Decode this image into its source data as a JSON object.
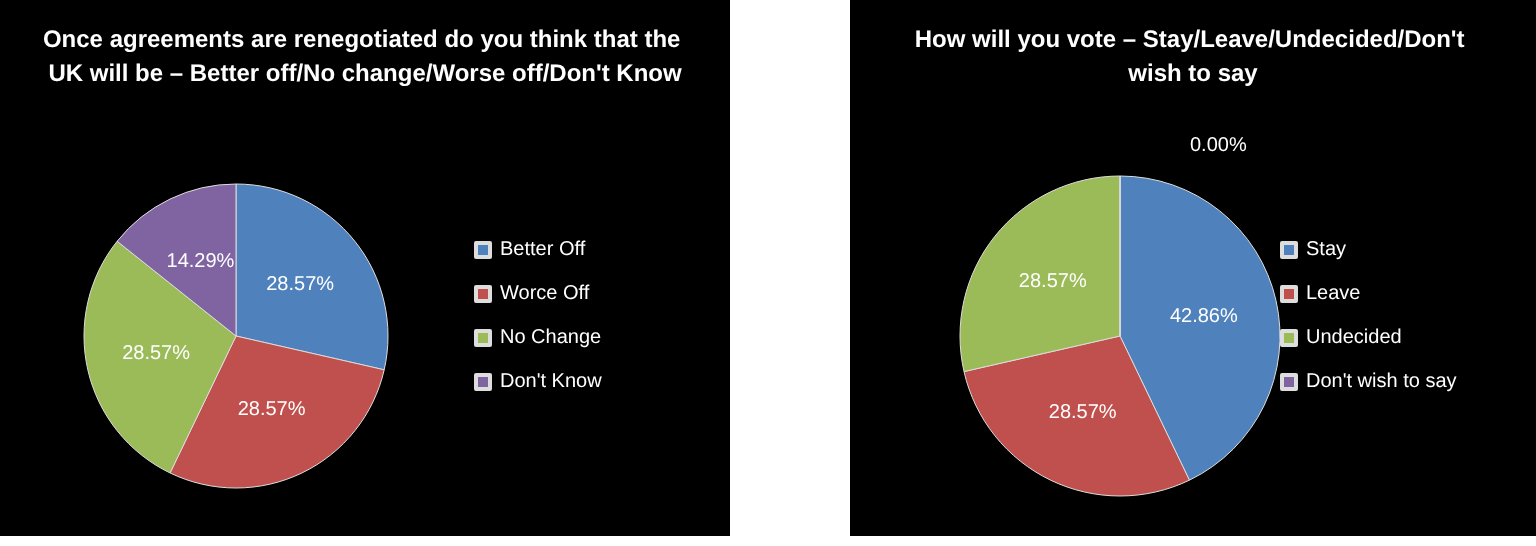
{
  "chart_data": [
    {
      "type": "pie",
      "title": "Once agreements are renegotiated do you think that the UK will be – Better off/No change/Worse off/Don't Know",
      "categories": [
        "Better Off",
        "Worce Off",
        "No Change",
        "Don't Know"
      ],
      "values": [
        28.57,
        28.57,
        28.57,
        14.29
      ],
      "colors": [
        "#4f81bd",
        "#c0504d",
        "#9bbb59",
        "#8064a2"
      ],
      "value_labels": [
        "28.57%",
        "28.57%",
        "28.57%",
        "14.29%"
      ],
      "legend": "right"
    },
    {
      "type": "pie",
      "title": "How will you vote – Stay/Leave/Undecided/Don't wish to say",
      "categories": [
        "Stay",
        "Leave",
        "Undecided",
        "Don't wish to say"
      ],
      "values": [
        42.86,
        28.57,
        28.57,
        0
      ],
      "colors": [
        "#4f81bd",
        "#c0504d",
        "#9bbb59",
        "#8064a2"
      ],
      "value_labels": [
        "42.86%",
        "28.57%",
        "28.57%",
        "0.00%"
      ],
      "legend": "right"
    }
  ]
}
